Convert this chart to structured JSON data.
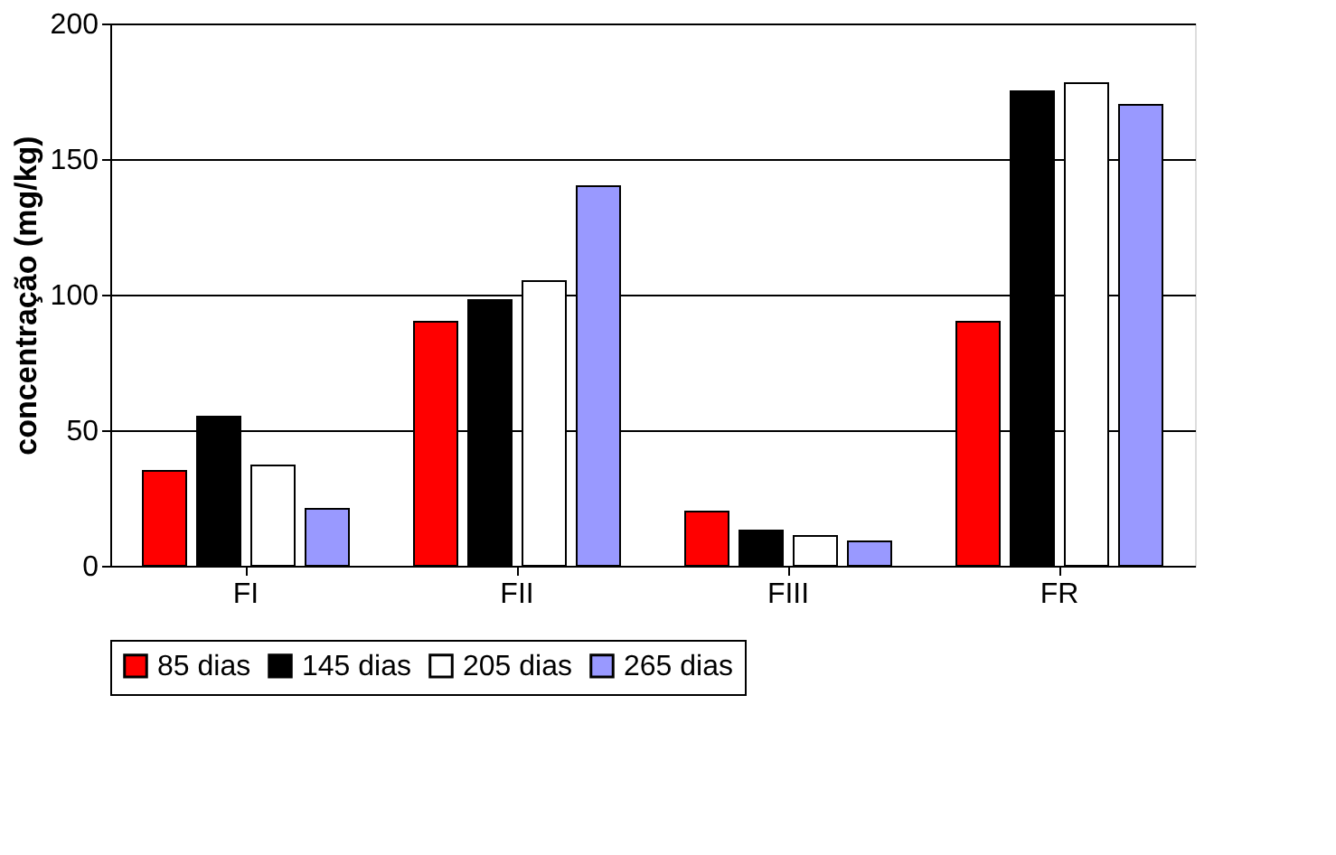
{
  "chart_data": {
    "type": "bar",
    "ylabel": "concentração (mg/kg)",
    "categories": [
      "FI",
      "FII",
      "FIII",
      "FR"
    ],
    "series": [
      {
        "name": "85 dias",
        "color": "#ff0000",
        "values": [
          35,
          90,
          20,
          90
        ]
      },
      {
        "name": "145 dias",
        "color": "#000000",
        "values": [
          55,
          98,
          13,
          175
        ]
      },
      {
        "name": "205 dias",
        "color": "#ffffff",
        "values": [
          37,
          105,
          11,
          178
        ]
      },
      {
        "name": "265 dias",
        "color": "#9999ff",
        "values": [
          21,
          140,
          9,
          170
        ]
      }
    ],
    "ylim": [
      0,
      200
    ],
    "yticks": [
      0,
      50,
      100,
      150,
      200
    ],
    "grid": "y",
    "legend": "bottom"
  }
}
